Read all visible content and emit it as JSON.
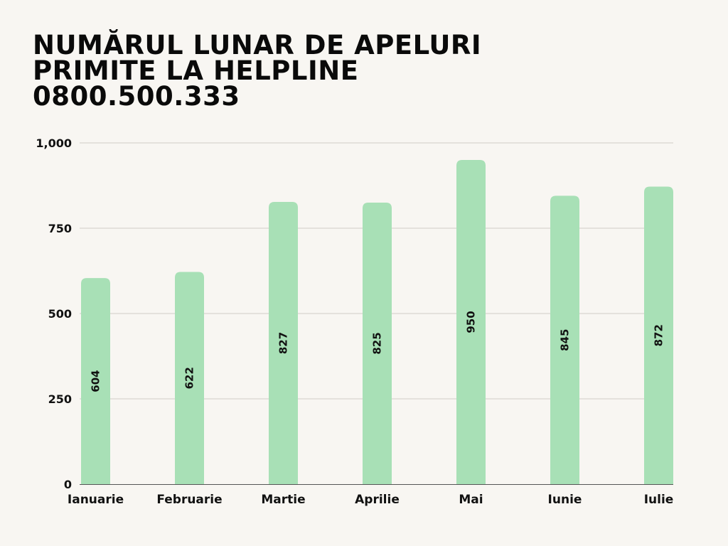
{
  "chart_data": {
    "type": "bar",
    "title_lines": [
      "NUMĂRUL LUNAR DE APELURI",
      "PRIMITE LA HELPLINE",
      "0800.500.333"
    ],
    "categories": [
      "Ianuarie",
      "Februarie",
      "Martie",
      "Aprilie",
      "Mai",
      "Iunie",
      "Iulie"
    ],
    "values": [
      604,
      622,
      827,
      825,
      950,
      845,
      872
    ],
    "ylim": [
      0,
      1000
    ],
    "yticks": [
      0,
      250,
      500,
      750,
      1000
    ],
    "ytick_labels": [
      "0",
      "250",
      "500",
      "750",
      "1,000"
    ],
    "xlabel": "",
    "ylabel": "",
    "grid": true,
    "legend": "none",
    "bar_color": "#a8e0b6",
    "data_labels": true
  }
}
